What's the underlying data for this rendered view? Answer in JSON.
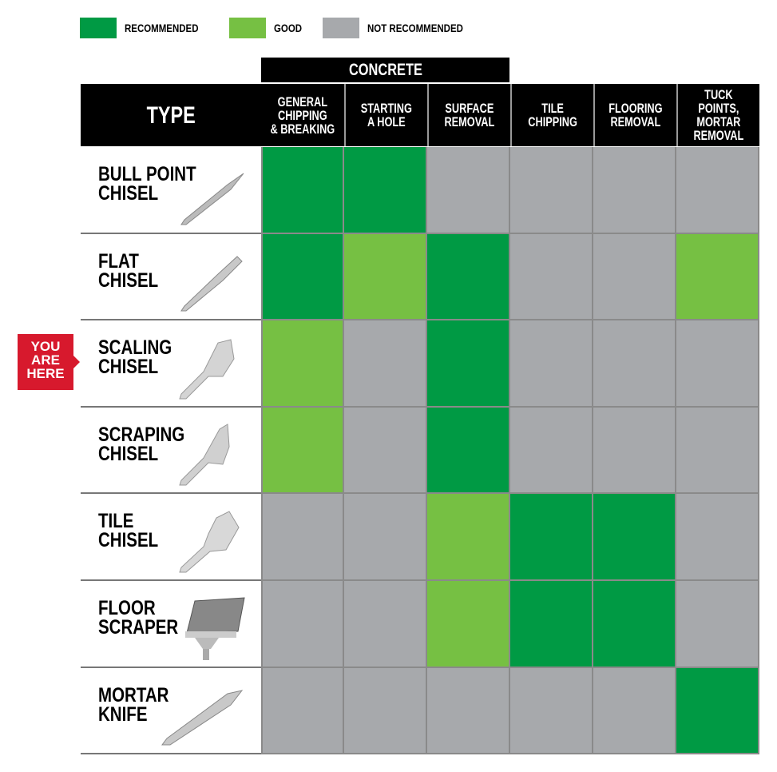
{
  "legend": [
    {
      "label": "RECOMMENDED",
      "color": "#009a44",
      "key": "R"
    },
    {
      "label": "GOOD",
      "color": "#76c043",
      "key": "G"
    },
    {
      "label": "NOT RECOMMENDED",
      "color": "#a7a9ac",
      "key": "N"
    }
  ],
  "badge": {
    "line1": "YOU",
    "line2": "ARE",
    "line3": "HERE",
    "color": "#d7192d"
  },
  "chart_data": {
    "type": "table",
    "group_header": {
      "label": "CONCRETE",
      "spans_columns": [
        "GENERAL CHIPPING & BREAKING",
        "STARTING A HOLE",
        "SURFACE REMOVAL"
      ]
    },
    "row_header": "TYPE",
    "columns": [
      "GENERAL CHIPPING & BREAKING",
      "STARTING A HOLE",
      "SURFACE REMOVAL",
      "TILE CHIPPING",
      "FLOORING REMOVAL",
      "TUCK POINTS, MORTAR REMOVAL"
    ],
    "rows": [
      {
        "label": "BULL POINT CHISEL",
        "icon": "bull-point-chisel-icon",
        "values": [
          "R",
          "R",
          "N",
          "N",
          "N",
          "N"
        ]
      },
      {
        "label": "FLAT CHISEL",
        "icon": "flat-chisel-icon",
        "values": [
          "R",
          "G",
          "R",
          "N",
          "N",
          "G"
        ]
      },
      {
        "label": "SCALING CHISEL",
        "icon": "scaling-chisel-icon",
        "values": [
          "G",
          "N",
          "R",
          "N",
          "N",
          "N"
        ],
        "highlighted": true
      },
      {
        "label": "SCRAPING CHISEL",
        "icon": "scraping-chisel-icon",
        "values": [
          "G",
          "N",
          "R",
          "N",
          "N",
          "N"
        ]
      },
      {
        "label": "TILE CHISEL",
        "icon": "tile-chisel-icon",
        "values": [
          "N",
          "N",
          "G",
          "R",
          "R",
          "N"
        ]
      },
      {
        "label": "FLOOR SCRAPER",
        "icon": "floor-scraper-icon",
        "values": [
          "N",
          "N",
          "G",
          "R",
          "R",
          "N"
        ]
      },
      {
        "label": "MORTAR KNIFE",
        "icon": "mortar-knife-icon",
        "values": [
          "N",
          "N",
          "N",
          "N",
          "N",
          "R"
        ]
      }
    ]
  }
}
